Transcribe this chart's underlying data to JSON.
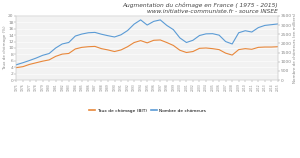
{
  "title_line1": "Augmentation du chômage en France ( 1975 - 2015)",
  "title_line2": "www.initiative-communiste.fr - source INSEE",
  "legend_label1": "Taux de chômage (BIT)",
  "legend_label2": "Nombre de chômeurs",
  "ylabel_left": "Taux de chômage (%)",
  "ylabel_right": "Nombre de chômeurs (en milliers)",
  "color_orange": "#E8873A",
  "color_blue": "#5B9BD5",
  "background": "#FFFFFF",
  "plot_bg": "#F2F2F2",
  "grid_color": "#FFFFFF",
  "tick_color": "#888888",
  "title_color": "#444444",
  "years": [
    1975,
    1976,
    1977,
    1978,
    1979,
    1980,
    1981,
    1982,
    1983,
    1984,
    1985,
    1986,
    1987,
    1988,
    1989,
    1990,
    1991,
    1992,
    1993,
    1994,
    1995,
    1996,
    1997,
    1998,
    1999,
    2000,
    2001,
    2002,
    2003,
    2004,
    2005,
    2006,
    2007,
    2008,
    2009,
    2010,
    2011,
    2012,
    2013,
    2014,
    2015
  ],
  "taux": [
    3.9,
    4.2,
    4.9,
    5.4,
    5.9,
    6.3,
    7.4,
    8.1,
    8.3,
    9.7,
    10.2,
    10.4,
    10.5,
    9.8,
    9.4,
    8.9,
    9.4,
    10.4,
    11.7,
    12.3,
    11.6,
    12.4,
    12.5,
    11.7,
    10.8,
    9.3,
    8.6,
    8.9,
    9.9,
    10.0,
    9.8,
    9.5,
    8.4,
    7.8,
    9.5,
    9.8,
    9.6,
    10.2,
    10.3,
    10.3,
    10.4
  ],
  "nombre": [
    840,
    950,
    1070,
    1200,
    1350,
    1450,
    1750,
    1970,
    2050,
    2400,
    2510,
    2580,
    2600,
    2500,
    2420,
    2350,
    2470,
    2700,
    3050,
    3280,
    3000,
    3200,
    3280,
    2980,
    2750,
    2300,
    2050,
    2170,
    2430,
    2520,
    2530,
    2450,
    2100,
    1970,
    2580,
    2690,
    2620,
    2860,
    2980,
    3020,
    3060
  ],
  "ylim_left": [
    0,
    20
  ],
  "ylim_right": [
    0,
    3500
  ],
  "yticks_left": [
    0,
    2,
    4,
    6,
    8,
    10,
    12,
    14,
    16,
    18,
    20
  ],
  "yticks_right": [
    0,
    500,
    1000,
    1500,
    2000,
    2500,
    3000,
    3500
  ],
  "xlim": [
    1975,
    2015
  ]
}
